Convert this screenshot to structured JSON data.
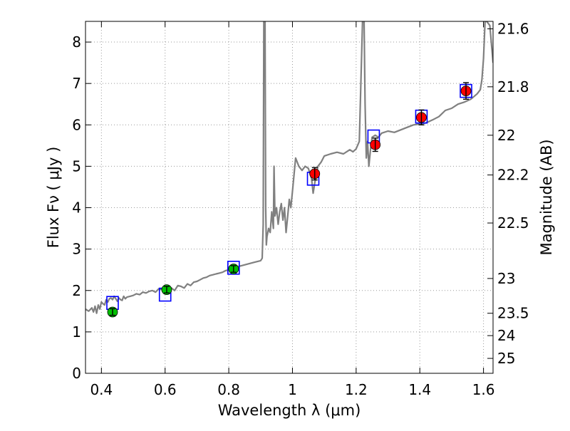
{
  "chart_data": {
    "type": "scatter",
    "xlabel": "Wavelength  λ (μm)",
    "ylabel": "Flux  Fν  ( μJy )",
    "y2label": "Magnitude (AB)",
    "xlim": [
      0.35,
      1.63
    ],
    "ylim": [
      0,
      8.5
    ],
    "grid": true,
    "x_ticks": [
      0.4,
      0.6,
      0.8,
      1.0,
      1.2,
      1.4,
      1.6
    ],
    "x_tick_labels": [
      "0.4",
      "0.6",
      "0.8",
      "1",
      "1.2",
      "1.4",
      "1.6"
    ],
    "y_ticks": [
      0,
      1,
      2,
      3,
      4,
      5,
      6,
      7,
      8
    ],
    "y_tick_labels": [
      "0",
      "1",
      "2",
      "3",
      "4",
      "5",
      "6",
      "7",
      "8"
    ],
    "y2_ticks": [
      {
        "label": "21.6",
        "flux": 8.32
      },
      {
        "label": "21.8",
        "flux": 6.92
      },
      {
        "label": "22",
        "flux": 5.75
      },
      {
        "label": "22.2",
        "flux": 4.79
      },
      {
        "label": "22.5",
        "flux": 3.63
      },
      {
        "label": "23",
        "flux": 2.29
      },
      {
        "label": "23.5",
        "flux": 1.45
      },
      {
        "label": "24",
        "flux": 0.91
      },
      {
        "label": "25",
        "flux": 0.36
      }
    ],
    "colors": {
      "sed": "#808080",
      "model_box": "#0000ff",
      "optical_point": "#00c000",
      "nir_point": "#ff0000",
      "grid": "#9a9a9a",
      "error_bar": "#000000"
    },
    "series": [
      {
        "type": "line",
        "x": [
          0.35,
          0.36,
          0.37,
          0.375,
          0.38,
          0.385,
          0.39,
          0.395,
          0.4,
          0.405,
          0.41,
          0.415,
          0.42,
          0.425,
          0.43,
          0.435,
          0.44,
          0.445,
          0.45,
          0.455,
          0.46,
          0.465,
          0.47,
          0.475,
          0.48,
          0.49,
          0.5,
          0.51,
          0.52,
          0.53,
          0.54,
          0.55,
          0.56,
          0.57,
          0.58,
          0.59,
          0.6,
          0.61,
          0.62,
          0.63,
          0.64,
          0.65,
          0.66,
          0.67,
          0.68,
          0.69,
          0.7,
          0.71,
          0.72,
          0.73,
          0.74,
          0.75,
          0.76,
          0.77,
          0.78,
          0.79,
          0.8,
          0.82,
          0.84,
          0.86,
          0.88,
          0.9,
          0.905,
          0.908,
          0.91,
          0.912,
          0.914,
          0.916,
          0.918,
          0.92,
          0.925,
          0.93,
          0.935,
          0.94,
          0.942,
          0.945,
          0.95,
          0.955,
          0.96,
          0.965,
          0.97,
          0.975,
          0.98,
          0.985,
          0.99,
          0.995,
          1.0,
          1.01,
          1.02,
          1.03,
          1.04,
          1.05,
          1.06,
          1.065,
          1.07,
          1.075,
          1.08,
          1.09,
          1.1,
          1.12,
          1.14,
          1.16,
          1.18,
          1.19,
          1.2,
          1.21,
          1.22,
          1.225,
          1.228,
          1.232,
          1.236,
          1.24,
          1.245,
          1.25,
          1.26,
          1.27,
          1.28,
          1.3,
          1.32,
          1.34,
          1.36,
          1.38,
          1.4,
          1.42,
          1.44,
          1.46,
          1.48,
          1.5,
          1.52,
          1.54,
          1.56,
          1.58,
          1.59,
          1.595,
          1.6,
          1.605,
          1.61,
          1.62,
          1.63
        ],
        "y": [
          1.55,
          1.5,
          1.58,
          1.48,
          1.62,
          1.45,
          1.65,
          1.55,
          1.72,
          1.68,
          1.65,
          1.78,
          1.72,
          1.8,
          1.82,
          1.78,
          1.86,
          1.8,
          1.74,
          1.82,
          1.78,
          1.76,
          1.86,
          1.8,
          1.84,
          1.86,
          1.88,
          1.92,
          1.9,
          1.96,
          1.94,
          1.98,
          2.0,
          1.96,
          2.04,
          2.02,
          1.98,
          2.02,
          2.06,
          2.0,
          2.12,
          2.1,
          2.06,
          2.16,
          2.12,
          2.2,
          2.22,
          2.26,
          2.3,
          2.32,
          2.36,
          2.38,
          2.4,
          2.42,
          2.44,
          2.48,
          2.5,
          2.56,
          2.6,
          2.64,
          2.68,
          2.72,
          2.78,
          3.6,
          8.5,
          8.5,
          8.5,
          4.0,
          3.1,
          3.3,
          3.5,
          3.4,
          3.9,
          3.5,
          5.0,
          3.8,
          4.0,
          3.6,
          3.9,
          4.1,
          3.7,
          4.0,
          3.4,
          3.8,
          4.2,
          4.0,
          4.4,
          5.2,
          5.0,
          4.9,
          5.0,
          4.95,
          4.7,
          4.35,
          4.6,
          4.8,
          5.0,
          5.1,
          5.25,
          5.3,
          5.34,
          5.3,
          5.4,
          5.35,
          5.42,
          5.6,
          8.5,
          8.5,
          6.5,
          5.2,
          5.6,
          5.0,
          5.4,
          5.7,
          5.75,
          5.7,
          5.8,
          5.85,
          5.82,
          5.88,
          5.94,
          6.0,
          6.02,
          6.05,
          6.12,
          6.2,
          6.35,
          6.4,
          6.5,
          6.55,
          6.62,
          6.75,
          6.85,
          7.1,
          7.6,
          8.5,
          8.5,
          8.4,
          7.5
        ]
      },
      {
        "type": "scatter",
        "marker": "open-square",
        "x": [
          0.435,
          0.6,
          0.815,
          1.065,
          1.255,
          1.405,
          1.545
        ],
        "y": [
          1.7,
          1.9,
          2.55,
          4.7,
          5.72,
          6.2,
          6.82
        ]
      },
      {
        "type": "errorbar",
        "marker": "filled-circle",
        "color": "optical_point",
        "x": [
          0.435,
          0.605,
          0.815
        ],
        "y": [
          1.48,
          2.02,
          2.52
        ],
        "yerr": [
          0.08,
          0.08,
          0.08
        ]
      },
      {
        "type": "errorbar",
        "marker": "filled-circle",
        "color": "nir_point",
        "x": [
          1.07,
          1.26,
          1.405,
          1.545
        ],
        "y": [
          4.82,
          5.52,
          6.18,
          6.82
        ],
        "yerr": [
          0.15,
          0.16,
          0.18,
          0.2
        ]
      }
    ]
  }
}
